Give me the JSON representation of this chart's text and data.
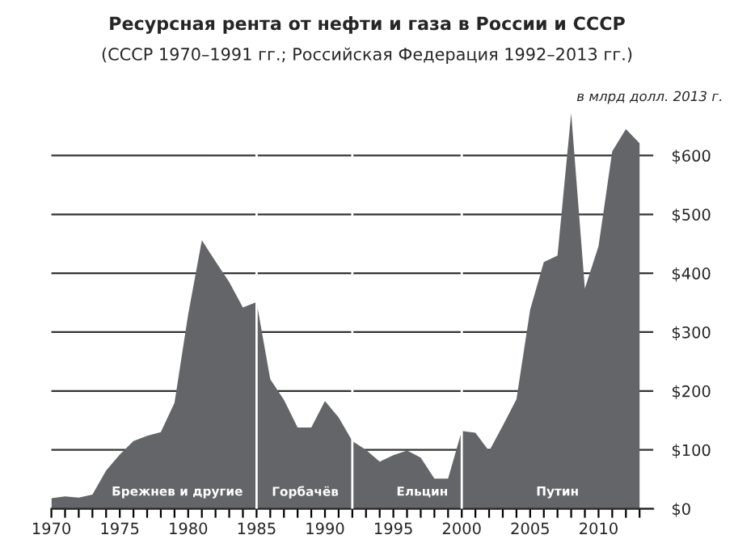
{
  "chart_data": {
    "type": "area",
    "title": "Ресурсная рента от нефти и газа в России и СССР",
    "subtitle": "(СССР 1970–1991 гг.; Российская Федерация 1992–2013 гг.)",
    "x": [
      1970,
      1971,
      1972,
      1973,
      1974,
      1975,
      1976,
      1977,
      1978,
      1979,
      1980,
      1981,
      1982,
      1983,
      1984,
      1985,
      1986,
      1987,
      1988,
      1989,
      1990,
      1991,
      1992,
      1993,
      1994,
      1995,
      1996,
      1997,
      1998,
      1999,
      2000,
      2001,
      2002,
      2003,
      2004,
      2005,
      2006,
      2007,
      2008,
      2009,
      2010,
      2011,
      2012,
      2013
    ],
    "series": [
      {
        "color": "#646568",
        "values": [
          18,
          21,
          19,
          24,
          65,
          92,
          115,
          124,
          130,
          180,
          330,
          456,
          420,
          385,
          342,
          351,
          220,
          185,
          138,
          138,
          183,
          155,
          115,
          100,
          80,
          91,
          99,
          87,
          51,
          51,
          132,
          129,
          98,
          141,
          186,
          338,
          419,
          430,
          672,
          374,
          446,
          607,
          645,
          621
        ]
      }
    ],
    "xlim": [
      1970,
      2014
    ],
    "ylim": [
      0,
      680
    ],
    "xticks": [
      1970,
      {
        "value": 1971,
        "label": null
      },
      {
        "value": 1972,
        "label": null
      },
      {
        "value": 1973,
        "label": null
      },
      {
        "value": 1974,
        "label": null
      },
      1975,
      {
        "value": 1976,
        "label": null
      },
      {
        "value": 1977,
        "label": null
      },
      {
        "value": 1978,
        "label": null
      },
      {
        "value": 1979,
        "label": null
      },
      1980,
      {
        "value": 1981,
        "label": null
      },
      {
        "value": 1982,
        "label": null
      },
      {
        "value": 1983,
        "label": null
      },
      {
        "value": 1984,
        "label": null
      },
      1985,
      {
        "value": 1986,
        "label": null
      },
      {
        "value": 1987,
        "label": null
      },
      {
        "value": 1988,
        "label": null
      },
      {
        "value": 1989,
        "label": null
      },
      1990,
      {
        "value": 1991,
        "label": null
      },
      {
        "value": 1992,
        "label": null
      },
      {
        "value": 1993,
        "label": null
      },
      {
        "value": 1994,
        "label": null
      },
      1995,
      {
        "value": 1996,
        "label": null
      },
      {
        "value": 1997,
        "label": null
      },
      {
        "value": 1998,
        "label": null
      },
      {
        "value": 1999,
        "label": null
      },
      2000,
      {
        "value": 2001,
        "label": null
      },
      {
        "value": 2002,
        "label": null
      },
      {
        "value": 2003,
        "label": null
      },
      {
        "value": 2004,
        "label": null
      },
      2005,
      {
        "value": 2006,
        "label": null
      },
      {
        "value": 2007,
        "label": null
      },
      {
        "value": 2008,
        "label": null
      },
      {
        "value": 2009,
        "label": null
      },
      2010,
      {
        "value": 2011,
        "label": null
      },
      {
        "value": 2012,
        "label": null
      },
      {
        "value": 2013,
        "label": null
      }
    ],
    "yticks": [
      {
        "value": 0,
        "label": "$0"
      },
      {
        "value": 100,
        "label": "$100"
      },
      {
        "value": 200,
        "label": "$200"
      },
      {
        "value": 300,
        "label": "$300"
      },
      {
        "value": 400,
        "label": "$400"
      },
      {
        "value": 500,
        "label": "$500"
      },
      {
        "value": 600,
        "label": "$600"
      }
    ],
    "grid": "y",
    "ref_lines": [
      {
        "axis": "x",
        "value": 1985,
        "color": "#ffffff"
      },
      {
        "axis": "x",
        "value": 1992,
        "color": "#ffffff"
      },
      {
        "axis": "x",
        "value": 2000,
        "color": "#ffffff"
      }
    ],
    "annotations": [
      "в млрд долл. 2013 г.",
      "Брежнев и другие",
      "Горбачёв",
      "Ельцин",
      "Путин"
    ]
  }
}
